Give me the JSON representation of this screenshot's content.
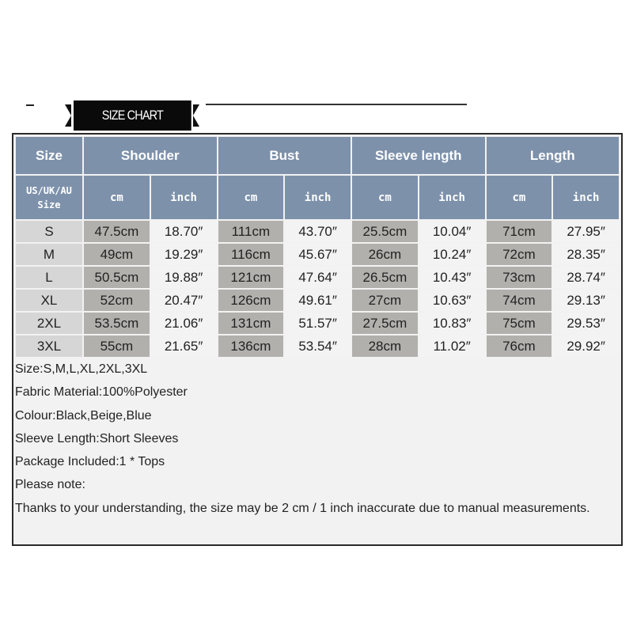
{
  "banner": {
    "title": "SIZE CHART"
  },
  "table": {
    "header": {
      "size": "Size",
      "groups": [
        "Shoulder",
        "Bust",
        "Sleeve length",
        "Length"
      ],
      "size_sub": "US/UK/AU Size",
      "cm": "cm",
      "inch": "inch"
    },
    "rows": [
      [
        "S",
        "47.5cm",
        "18.70″",
        "111cm",
        "43.70″",
        "25.5cm",
        "10.04″",
        "71cm",
        "27.95″"
      ],
      [
        "M",
        "49cm",
        "19.29″",
        "116cm",
        "45.67″",
        "26cm",
        "10.24″",
        "72cm",
        "28.35″"
      ],
      [
        "L",
        "50.5cm",
        "19.88″",
        "121cm",
        "47.64″",
        "26.5cm",
        "10.43″",
        "73cm",
        "28.74″"
      ],
      [
        "XL",
        "52cm",
        "20.47″",
        "126cm",
        "49.61″",
        "27cm",
        "10.63″",
        "74cm",
        "29.13″"
      ],
      [
        "2XL",
        "53.5cm",
        "21.06″",
        "131cm",
        "51.57″",
        "27.5cm",
        "10.83″",
        "75cm",
        "29.53″"
      ],
      [
        "3XL",
        "55cm",
        "21.65″",
        "136cm",
        "53.54″",
        "28cm",
        "11.02″",
        "76cm",
        "29.92″"
      ]
    ]
  },
  "notes": [
    "Size:S,M,L,XL,2XL,3XL",
    "Fabric Material:100%Polyester",
    "Colour:Black,Beige,Blue",
    "Sleeve Length:Short Sleeves",
    "Package Included:1 * Tops",
    "Please note:",
    "Thanks to your understanding, the size may be 2 cm / 1 inch inaccurate due to manual measurements."
  ]
}
